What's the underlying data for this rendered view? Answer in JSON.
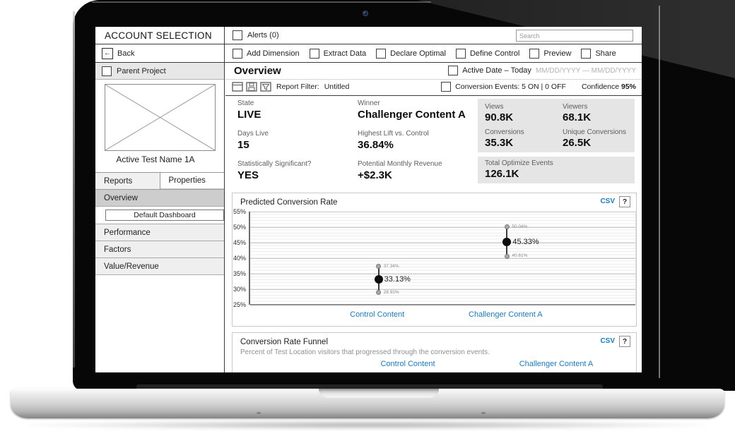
{
  "titlebar": {
    "title": "ACCOUNT SELECTION",
    "alerts_label": "Alerts (0)",
    "search_placeholder": "Search"
  },
  "toolbar": {
    "back_label": "Back",
    "back_arrow": "←",
    "items": [
      "Add Dimension",
      "Extract Data",
      "Declare Optimal",
      "Define Control",
      "Preview",
      "Share"
    ]
  },
  "sidebar": {
    "parent_project_label": "Parent Project",
    "thumbnail_caption": "Active Test Name 1A",
    "tabs": [
      {
        "label": "Reports"
      },
      {
        "label": "Properties"
      }
    ],
    "items": [
      {
        "label": "Overview"
      },
      {
        "label": "Default Dashboard"
      },
      {
        "label": "Performance"
      },
      {
        "label": "Factors"
      },
      {
        "label": "Value/Revenue"
      }
    ]
  },
  "overview_header": {
    "title": "Overview",
    "active_date_label": "Active Date – Today",
    "date_placeholder": "MM/DD/YYYY — MM/DD/YYYY",
    "report_filter_label": "Report Filter:",
    "report_filter_value": "Untitled",
    "conversion_events_label": "Conversion Events: 5 ON | 0 OFF",
    "confidence_label": "Confidence",
    "confidence_value": "95%"
  },
  "stats": {
    "left": [
      {
        "label": "State",
        "value": "LIVE"
      },
      {
        "label": "Days Live",
        "value": "15"
      },
      {
        "label": "Statistically Significant?",
        "value": "YES"
      }
    ],
    "middle": [
      {
        "label": "Winner",
        "value": "Challenger Content A"
      },
      {
        "label": "Highest Lift vs. Control",
        "value": "36.84%"
      },
      {
        "label": "Potential Monthly Revenue",
        "value": "+$2.3K"
      }
    ],
    "grid": [
      {
        "label": "Views",
        "value": "90.8K"
      },
      {
        "label": "Viewers",
        "value": "68.1K"
      },
      {
        "label": "Conversions",
        "value": "35.3K"
      },
      {
        "label": "Unique Conversions",
        "value": "26.5K"
      }
    ],
    "total": {
      "label": "Total Optimize Events",
      "value": "126.1K"
    }
  },
  "chart_card": {
    "csv_label": "CSV",
    "help_label": "?"
  },
  "chart_data": {
    "type": "scatter",
    "title": "Predicted Conversion Rate",
    "xlabel": "",
    "ylabel": "",
    "ylim": [
      25,
      55
    ],
    "yticks": [
      55,
      50,
      45,
      40,
      35,
      30,
      25
    ],
    "ytick_suffix": "%",
    "grid": "on",
    "legend": "none",
    "categories": [
      "Control Content",
      "Challenger Content A"
    ],
    "series": [
      {
        "name": "Predicted Conversion Rate",
        "points": [
          {
            "category": "Control Content",
            "value": 33.13,
            "label": "33.13%",
            "upper": 37.34,
            "upper_label": "37.34%",
            "lower": 28.91,
            "lower_label": "28.91%"
          },
          {
            "category": "Challenger Content A",
            "value": 45.33,
            "label": "45.33%",
            "upper": 50.04,
            "upper_label": "50.04%",
            "lower": 40.61,
            "lower_label": "40.61%"
          }
        ]
      }
    ],
    "link_color": "#1e78b5"
  },
  "funnel_card": {
    "title": "Conversion Rate Funnel",
    "csv_label": "CSV",
    "help_label": "?",
    "subtitle": "Percent of Test Location visitors that progressed through the conversion events.",
    "columns": [
      "Control Content",
      "Challenger Content A"
    ]
  }
}
